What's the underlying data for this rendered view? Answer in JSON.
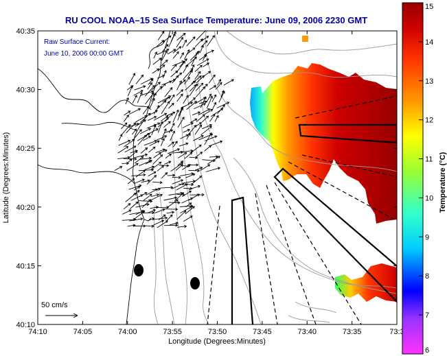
{
  "title": "RU COOL  NOAA–15  Sea Surface Temperature:  June 09, 2006 2230 GMT",
  "annotation": {
    "line1": "Raw Surface Current:",
    "line2": "June 10, 2006 00:00 GMT"
  },
  "scale_label": "50 cm/s",
  "x_axis": {
    "label": "Longitude (Degrees:Minutes)",
    "ticks": [
      "74:10",
      "74:05",
      "74:00",
      "73:55",
      "73:50",
      "73:45",
      "73:40",
      "73:35",
      "73:3"
    ]
  },
  "y_axis": {
    "label": "Latitude (Degrees:Minutes)",
    "ticks": [
      "40:10",
      "40:15",
      "40:20",
      "40:25",
      "40:30",
      "40:35"
    ]
  },
  "colorbar": {
    "label": "Temperature (°C)",
    "ticks": [
      "6",
      "7",
      "8",
      "9",
      "10",
      "11",
      "12",
      "13",
      "14",
      "15"
    ],
    "min": 6,
    "max": 15,
    "colors": [
      "#ff33ff",
      "#9933ff",
      "#0000ff",
      "#00ccff",
      "#33ffcc",
      "#99ff33",
      "#ffff00",
      "#ff9900",
      "#ff3300",
      "#cc0000",
      "#990000"
    ]
  }
}
